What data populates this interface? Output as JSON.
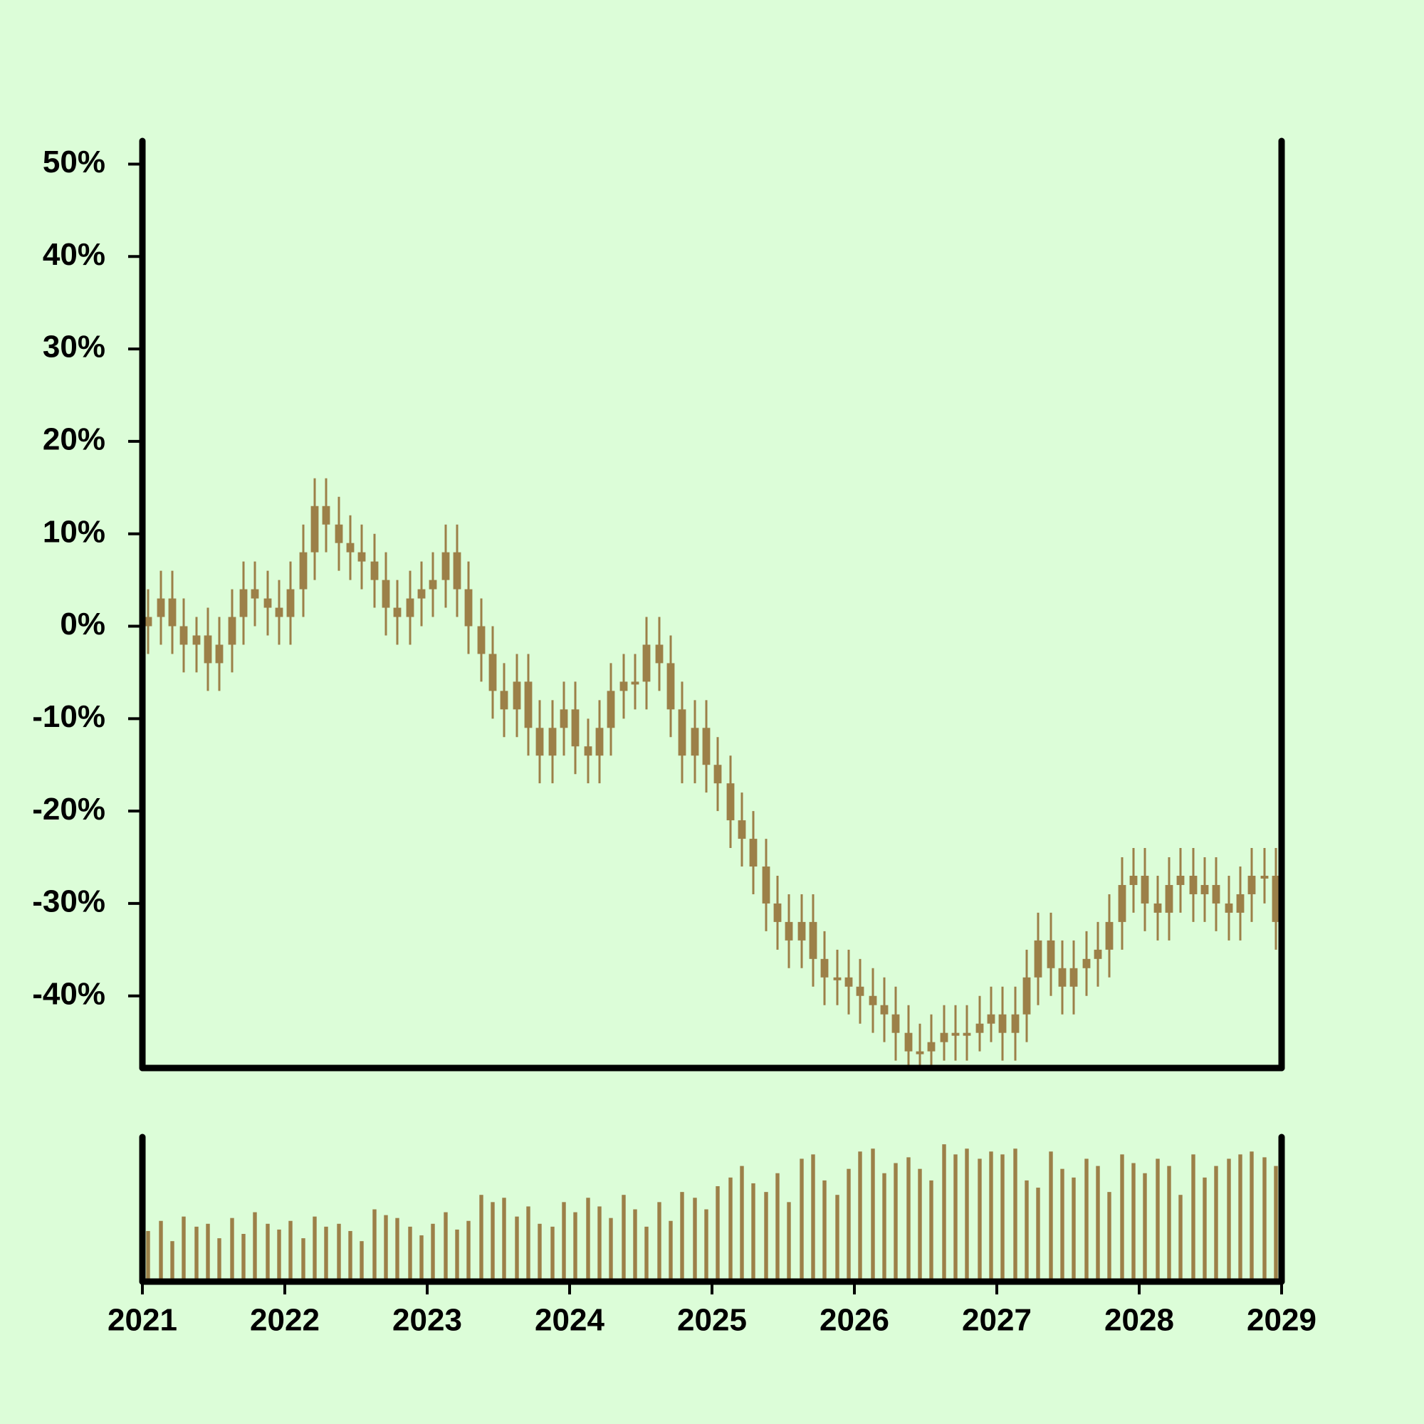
{
  "chart_data": {
    "type": "candlestick",
    "color": "#9c8048",
    "background": "#dcfdd8",
    "xlim": [
      2021,
      2029
    ],
    "xticks": [
      2021,
      2022,
      2023,
      2024,
      2025,
      2026,
      2027,
      2028,
      2029
    ],
    "ylim": [
      -47.8,
      52.5
    ],
    "yticks": [
      {
        "value": -40,
        "label": "-40%"
      },
      {
        "value": -30,
        "label": "-30%"
      },
      {
        "value": -20,
        "label": "-20%"
      },
      {
        "value": -10,
        "label": "-10%"
      },
      {
        "value": 0,
        "label": "0%"
      },
      {
        "value": 10,
        "label": "10%"
      },
      {
        "value": 20,
        "label": "20%"
      },
      {
        "value": 30,
        "label": "30%"
      },
      {
        "value": 40,
        "label": "40%"
      },
      {
        "value": 50,
        "label": "50%"
      }
    ],
    "vlim": [
      0,
      100
    ],
    "x": [
      2021.04,
      2021.13,
      2021.21,
      2021.29,
      2021.38,
      2021.46,
      2021.54,
      2021.63,
      2021.71,
      2021.79,
      2021.88,
      2021.96,
      2022.04,
      2022.13,
      2022.21,
      2022.29,
      2022.38,
      2022.46,
      2022.54,
      2022.63,
      2022.71,
      2022.79,
      2022.88,
      2022.96,
      2023.04,
      2023.13,
      2023.21,
      2023.29,
      2023.38,
      2023.46,
      2023.54,
      2023.63,
      2023.71,
      2023.79,
      2023.88,
      2023.96,
      2024.04,
      2024.13,
      2024.21,
      2024.29,
      2024.38,
      2024.46,
      2024.54,
      2024.63,
      2024.71,
      2024.79,
      2024.88,
      2024.96,
      2025.04,
      2025.13,
      2025.21,
      2025.29,
      2025.38,
      2025.46,
      2025.54,
      2025.63,
      2025.71,
      2025.79,
      2025.88,
      2025.96,
      2026.04,
      2026.13,
      2026.21,
      2026.29,
      2026.38,
      2026.46,
      2026.54,
      2026.63,
      2026.71,
      2026.79,
      2026.88,
      2026.96,
      2027.04,
      2027.13,
      2027.21,
      2027.29,
      2027.38,
      2027.46,
      2027.54,
      2027.63,
      2027.71,
      2027.79,
      2027.88,
      2027.96,
      2028.04,
      2028.13,
      2028.21,
      2028.29,
      2028.38,
      2028.46,
      2028.54,
      2028.63,
      2028.71,
      2028.79,
      2028.88,
      2028.96
    ],
    "open": [
      0,
      1,
      3,
      0,
      -2,
      -1,
      -4,
      -2,
      1,
      4,
      3,
      2,
      1,
      4,
      8,
      13,
      11,
      9,
      8,
      7,
      5,
      2,
      1,
      3,
      4,
      5,
      8,
      4,
      0,
      -3,
      -7,
      -9,
      -6,
      -11,
      -14,
      -11,
      -9,
      -13,
      -14,
      -11,
      -7,
      -6,
      -6,
      -2,
      -4,
      -9,
      -14,
      -11,
      -15,
      -17,
      -21,
      -23,
      -26,
      -30,
      -32,
      -34,
      -32,
      -36,
      -38,
      -38,
      -39,
      -40,
      -41,
      -42,
      -44,
      -46,
      -46,
      -45,
      -44,
      -44,
      -44,
      -43,
      -42,
      -44,
      -42,
      -38,
      -34,
      -37,
      -39,
      -37,
      -36,
      -35,
      -32,
      -28,
      -27,
      -30,
      -31,
      -28,
      -27,
      -29,
      -28,
      -30,
      -31,
      -29,
      -27,
      -27
    ],
    "high": [
      4,
      6,
      6,
      3,
      1,
      2,
      1,
      4,
      7,
      7,
      6,
      5,
      7,
      11,
      16,
      16,
      14,
      12,
      11,
      10,
      8,
      5,
      6,
      7,
      8,
      11,
      11,
      7,
      3,
      0,
      -4,
      -3,
      -3,
      -8,
      -8,
      -6,
      -6,
      -10,
      -8,
      -4,
      -3,
      -3,
      1,
      1,
      -1,
      -6,
      -8,
      -8,
      -12,
      -14,
      -18,
      -20,
      -23,
      -27,
      -29,
      -29,
      -29,
      -33,
      -35,
      -35,
      -36,
      -37,
      -38,
      -39,
      -41,
      -43,
      -42,
      -41,
      -41,
      -41,
      -40,
      -39,
      -39,
      -39,
      -35,
      -31,
      -31,
      -34,
      -34,
      -33,
      -32,
      -29,
      -25,
      -24,
      -24,
      -27,
      -25,
      -24,
      -24,
      -25,
      -25,
      -27,
      -26,
      -24,
      -24,
      -24
    ],
    "low": [
      -3,
      -2,
      -3,
      -5,
      -5,
      -7,
      -7,
      -5,
      -2,
      0,
      -1,
      -2,
      -2,
      1,
      5,
      8,
      6,
      5,
      4,
      2,
      -1,
      -2,
      -2,
      0,
      1,
      2,
      1,
      -3,
      -6,
      -10,
      -12,
      -12,
      -14,
      -17,
      -17,
      -14,
      -16,
      -17,
      -17,
      -14,
      -10,
      -9,
      -9,
      -7,
      -12,
      -17,
      -17,
      -18,
      -20,
      -24,
      -26,
      -29,
      -33,
      -35,
      -37,
      -37,
      -39,
      -41,
      -41,
      -42,
      -43,
      -44,
      -45,
      -47,
      -49,
      -49,
      -48,
      -47,
      -47,
      -47,
      -46,
      -45,
      -47,
      -47,
      -45,
      -41,
      -40,
      -42,
      -42,
      -40,
      -39,
      -38,
      -35,
      -31,
      -33,
      -34,
      -34,
      -31,
      -32,
      -32,
      -33,
      -34,
      -34,
      -32,
      -30,
      -35
    ],
    "close": [
      1,
      3,
      0,
      -2,
      -1,
      -4,
      -2,
      1,
      4,
      3,
      2,
      1,
      4,
      8,
      13,
      11,
      9,
      8,
      7,
      5,
      2,
      1,
      3,
      4,
      5,
      8,
      4,
      0,
      -3,
      -7,
      -9,
      -6,
      -11,
      -14,
      -11,
      -9,
      -13,
      -14,
      -11,
      -7,
      -6,
      -6,
      -2,
      -4,
      -9,
      -14,
      -11,
      -15,
      -17,
      -21,
      -23,
      -26,
      -30,
      -32,
      -34,
      -32,
      -36,
      -38,
      -38,
      -39,
      -40,
      -41,
      -42,
      -44,
      -46,
      -46,
      -45,
      -44,
      -44,
      -44,
      -43,
      -42,
      -44,
      -42,
      -38,
      -34,
      -37,
      -39,
      -37,
      -36,
      -35,
      -32,
      -28,
      -27,
      -30,
      -31,
      -28,
      -27,
      -29,
      -28,
      -30,
      -31,
      -29,
      -27,
      -27,
      -32
    ],
    "volume": [
      35,
      42,
      28,
      45,
      38,
      40,
      30,
      44,
      33,
      48,
      40,
      36,
      42,
      30,
      45,
      38,
      40,
      35,
      28,
      50,
      46,
      44,
      38,
      32,
      40,
      48,
      36,
      42,
      60,
      55,
      58,
      45,
      52,
      40,
      38,
      55,
      48,
      58,
      52,
      44,
      60,
      50,
      38,
      55,
      42,
      62,
      58,
      50,
      66,
      72,
      80,
      68,
      62,
      75,
      55,
      85,
      88,
      70,
      60,
      78,
      90,
      92,
      75,
      82,
      86,
      78,
      70,
      95,
      88,
      92,
      85,
      90,
      88,
      92,
      70,
      65,
      90,
      78,
      72,
      85,
      80,
      62,
      88,
      82,
      75,
      85,
      80,
      60,
      88,
      72,
      80,
      85,
      88,
      90,
      86,
      80
    ]
  }
}
